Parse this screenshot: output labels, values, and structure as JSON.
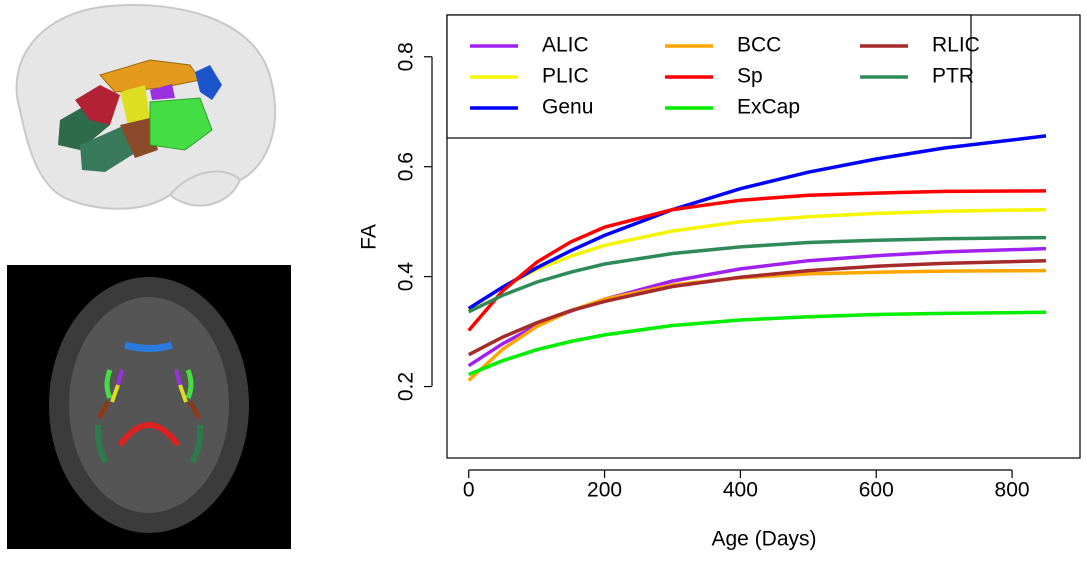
{
  "chart_data": {
    "type": "line",
    "x_label": "Age (Days)",
    "y_label": "FA",
    "x": [
      0,
      50,
      100,
      150,
      200,
      300,
      400,
      500,
      600,
      700,
      850
    ],
    "series": [
      {
        "name": "ALIC",
        "color": "#a020f0",
        "values": [
          0.238,
          0.278,
          0.311,
          0.337,
          0.359,
          0.392,
          0.414,
          0.429,
          0.438,
          0.445,
          0.451
        ]
      },
      {
        "name": "PLIC",
        "color": "#f5f500",
        "values": [
          0.34,
          0.381,
          0.413,
          0.437,
          0.457,
          0.483,
          0.5,
          0.509,
          0.515,
          0.519,
          0.522
        ]
      },
      {
        "name": "Genu",
        "color": "#0000ff",
        "values": [
          0.342,
          0.381,
          0.416,
          0.447,
          0.475,
          0.522,
          0.56,
          0.59,
          0.614,
          0.634,
          0.656
        ]
      },
      {
        "name": "BCC",
        "color": "#ffa500",
        "values": [
          0.211,
          0.268,
          0.309,
          0.338,
          0.359,
          0.385,
          0.398,
          0.405,
          0.408,
          0.41,
          0.411
        ]
      },
      {
        "name": "Sp",
        "color": "#ff0000",
        "values": [
          0.302,
          0.374,
          0.426,
          0.463,
          0.49,
          0.522,
          0.539,
          0.548,
          0.552,
          0.555,
          0.556
        ]
      },
      {
        "name": "ExCap",
        "color": "#00ee00",
        "values": [
          0.222,
          0.247,
          0.267,
          0.282,
          0.294,
          0.311,
          0.321,
          0.327,
          0.331,
          0.333,
          0.335
        ]
      },
      {
        "name": "RLIC",
        "color": "#a52a2a",
        "values": [
          0.258,
          0.29,
          0.316,
          0.338,
          0.355,
          0.382,
          0.399,
          0.411,
          0.419,
          0.424,
          0.429
        ]
      },
      {
        "name": "PTR",
        "color": "#2e8b57",
        "values": [
          0.336,
          0.366,
          0.39,
          0.408,
          0.423,
          0.442,
          0.454,
          0.462,
          0.466,
          0.469,
          0.471
        ]
      }
    ],
    "xlim": [
      -32,
      900
    ],
    "xticks": [
      0,
      200,
      400,
      600,
      800
    ],
    "ylim": [
      0.07,
      0.876
    ],
    "yticks": [
      0.2,
      0.4,
      0.6,
      0.8
    ],
    "legend": "top-left",
    "grid": false
  }
}
